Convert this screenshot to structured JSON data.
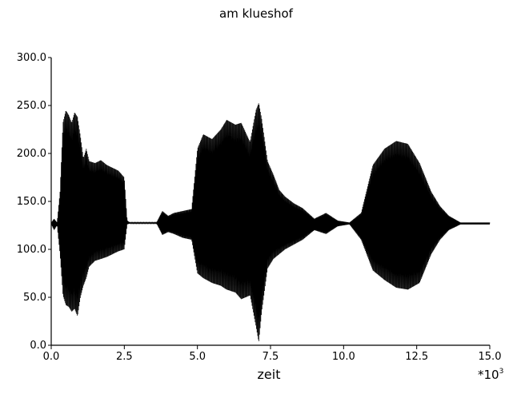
{
  "chart_data": {
    "type": "line",
    "title": "am klueshof",
    "xlabel": "zeit",
    "ylabel": "",
    "x_multiplier_label": "*10",
    "x_multiplier_exponent": "3",
    "xlim": [
      0,
      15
    ],
    "ylim": [
      0,
      300
    ],
    "x_ticks": [
      "0.0",
      "2.5",
      "5.0",
      "7.5",
      "10.0",
      "12.5",
      "15.0"
    ],
    "y_ticks": [
      "0.0",
      "50.0",
      "100.0",
      "150.0",
      "200.0",
      "250.0",
      "300.0"
    ],
    "grid": false,
    "baseline": 127,
    "series": [
      {
        "x": [
          0.0,
          0.1,
          0.2,
          0.3,
          0.4,
          0.5,
          0.6,
          0.7,
          0.8,
          0.9,
          1.0,
          1.1,
          1.2,
          1.3,
          1.5,
          1.7,
          1.9,
          2.1,
          2.3,
          2.5,
          2.6,
          2.7,
          3.0,
          3.3,
          3.6,
          3.8,
          4.0,
          4.2,
          4.5,
          4.8,
          5.0,
          5.2,
          5.5,
          5.8,
          6.0,
          6.3,
          6.5,
          6.8,
          7.0,
          7.1,
          7.2,
          7.4,
          7.6,
          7.8,
          8.0,
          8.3,
          8.6,
          9.0,
          9.4,
          9.8,
          10.2,
          10.6,
          11.0,
          11.4,
          11.8,
          12.2,
          12.6,
          13.0,
          13.3,
          13.6,
          14.0,
          14.5,
          15.0
        ],
        "upper": [
          128,
          132,
          128,
          160,
          232,
          245,
          240,
          232,
          243,
          238,
          218,
          195,
          205,
          192,
          190,
          193,
          188,
          185,
          182,
          175,
          130,
          128,
          128,
          128,
          128,
          140,
          135,
          138,
          140,
          142,
          205,
          220,
          215,
          225,
          235,
          230,
          232,
          212,
          245,
          253,
          236,
          192,
          178,
          162,
          155,
          148,
          143,
          132,
          138,
          130,
          128,
          138,
          188,
          205,
          213,
          210,
          190,
          160,
          145,
          135,
          128,
          128,
          128
        ],
        "lower": [
          126,
          120,
          125,
          95,
          52,
          42,
          40,
          35,
          38,
          30,
          50,
          62,
          70,
          82,
          88,
          90,
          92,
          95,
          98,
          100,
          126,
          127,
          127,
          127,
          127,
          115,
          118,
          116,
          112,
          110,
          75,
          70,
          65,
          62,
          58,
          55,
          48,
          52,
          20,
          3,
          35,
          80,
          90,
          95,
          100,
          105,
          110,
          120,
          116,
          124,
          126,
          110,
          78,
          68,
          60,
          58,
          65,
          95,
          110,
          120,
          126,
          126,
          126
        ]
      }
    ]
  }
}
